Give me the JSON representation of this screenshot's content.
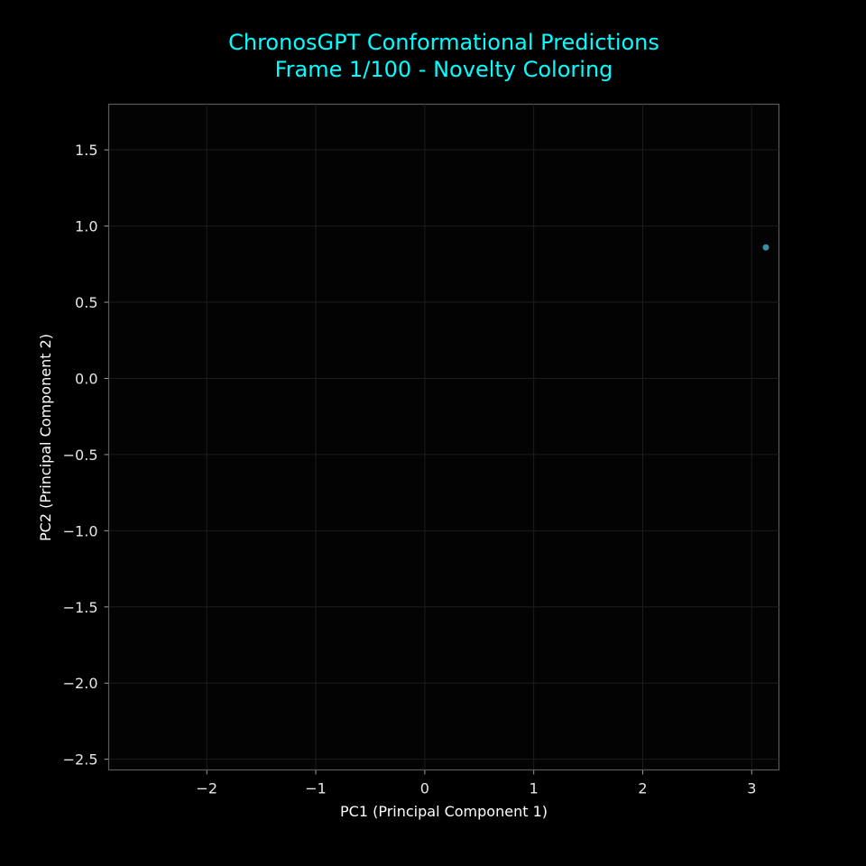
{
  "chart_data": {
    "type": "scatter",
    "title_line1": "ChronosGPT Conformational Predictions",
    "title_line2": "Frame 1/100 - Novelty Coloring",
    "xlabel": "PC1 (Principal Component 1)",
    "ylabel": "PC2 (Principal Component 2)",
    "xlim": [
      -2.9,
      3.25
    ],
    "ylim": [
      -2.57,
      1.8
    ],
    "xticks": [
      -2,
      -1,
      0,
      1,
      2,
      3
    ],
    "xtick_labels": [
      "−2",
      "−1",
      "0",
      "1",
      "2",
      "3"
    ],
    "yticks": [
      1.5,
      1.0,
      0.5,
      0.0,
      -0.5,
      -1.0,
      -1.5,
      -2.0,
      -2.5
    ],
    "ytick_labels": [
      "1.5",
      "1.0",
      "0.5",
      "0.0",
      "−0.5",
      "−1.0",
      "−1.5",
      "−2.0",
      "−2.5"
    ],
    "grid": true,
    "points": [
      {
        "x": 3.13,
        "y": 0.86,
        "color": "#3a8fa8"
      }
    ],
    "colors": {
      "background": "#000000",
      "plot_background": "#030303",
      "title": "#00ffff",
      "text": "#e6e6e6",
      "grid": "#1c1c1c",
      "spine": "#5a5a5a"
    }
  }
}
